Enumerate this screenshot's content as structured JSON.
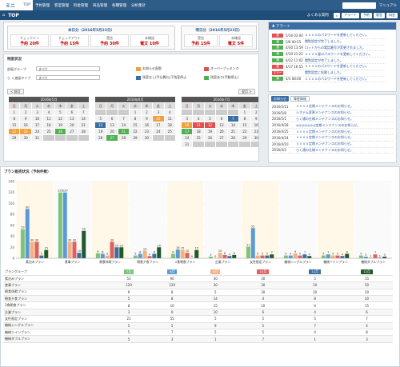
{
  "nav": {
    "logo": "ミニ",
    "items": [
      "TOP",
      "予約管理",
      "客室管理",
      "料金管理",
      "商品管理",
      "各種管理",
      "分析集計"
    ],
    "manual": "マニュアル"
  },
  "subbar": {
    "title": "TOP",
    "faq": "よくある質問",
    "buttons": [
      "アラート",
      "予約",
      "客室",
      "料金"
    ]
  },
  "today": {
    "title": "本日分（2016年5月22日）",
    "cells": [
      {
        "label": "チェックイン",
        "value": "予約 20件"
      },
      {
        "label": "チェックアウト",
        "value": "予約 15件"
      },
      {
        "label": "受信",
        "value": "予約 30件"
      },
      {
        "label": "未確認",
        "value": "電文 10件"
      }
    ]
  },
  "tomorrow": {
    "title": "明日分（2016年5月23日）",
    "cells": [
      {
        "label": "受信",
        "value": "予約 15件"
      },
      {
        "label": "未確認",
        "value": "電文 5件"
      }
    ]
  },
  "vacancy": {
    "title": "残室状況",
    "group_label": "部屋グループ",
    "group_value": "すべて",
    "type_label": "ら く遍留タイプ",
    "type_value": "すべて",
    "prev": "< 前月",
    "next": "翌月 >",
    "legend": [
      {
        "label": "お知らせ直野",
        "color": "#f0a040"
      },
      {
        "label": "オーバーブッキング",
        "color": "#e05050"
      },
      {
        "label": "残室なし(手仕舞)以下残室停止",
        "color": "#3a6ea5"
      },
      {
        "label": "残室あり(手動停止)",
        "color": "#50b050"
      }
    ]
  },
  "calendars": [
    {
      "title": "2016年5月",
      "days": [
        "1",
        "2",
        "3",
        "4",
        "5",
        "6",
        "7",
        "8",
        "9",
        "10",
        "11",
        "12",
        "13",
        "14",
        "15",
        "16",
        "17",
        "18",
        "19",
        "20",
        "21",
        "22",
        "23",
        "24",
        "25",
        "26",
        "27",
        "28",
        "29",
        "30",
        "31"
      ],
      "offset": 0
    },
    {
      "title": "2016年6月",
      "days": [
        "1",
        "2",
        "3",
        "4",
        "5",
        "6",
        "7",
        "8",
        "9",
        "10",
        "11",
        "12",
        "13",
        "14",
        "15",
        "16",
        "17",
        "18",
        "19",
        "20",
        "21",
        "22",
        "23",
        "24",
        "25",
        "26",
        "27",
        "28",
        "29",
        "30"
      ],
      "offset": 3
    },
    {
      "title": "2016年7月",
      "days": [
        "1",
        "2",
        "3",
        "4",
        "5",
        "6",
        "7",
        "8",
        "9",
        "10",
        "11",
        "12",
        "13",
        "14",
        "15",
        "16",
        "17",
        "18",
        "19",
        "20",
        "21",
        "22",
        "23",
        "24",
        "25",
        "26",
        "27",
        "28",
        "29",
        "30",
        "31"
      ],
      "offset": 5
    }
  ],
  "dow": [
    "日",
    "月",
    "火",
    "水",
    "木",
    "金",
    "土"
  ],
  "alerts": {
    "title": "アラート",
    "rows": [
      {
        "badge": "重",
        "color": "#e05050",
        "date": "5/16 03:00",
        "text": "ｘｘｘｘのパスワードを更新してください。"
      },
      {
        "badge": "通",
        "color": "#50b050",
        "date": "5/8 00:55",
        "text": "閲覧設定が完了しました。"
      },
      {
        "badge": "通",
        "color": "#50b050",
        "date": "4/30 13:59",
        "text": "ロットからの電話番号が変更されました。"
      },
      {
        "badge": "通",
        "color": "#50b050",
        "date": "4/30 21:22",
        "text": "ｘｘｘｘ屋のパスワードを更新してください。"
      },
      {
        "badge": "通",
        "color": "#50b050",
        "date": "4/22 11:02",
        "text": "閲覧設定が完了しました。"
      },
      {
        "badge": "重",
        "color": "#e05050",
        "date": "4/17 16:55",
        "text": "ｘｘｘｘのパスワードを更新してください。"
      },
      {
        "badge": "エラー",
        "color": "#e05050",
        "date": "",
        "text": "閲覧設定に失敗しました。"
      },
      {
        "badge": "通",
        "color": "#50b050",
        "date": "4/3 08:00",
        "text": "ｘｘｘｘのパスワードを更新してください。"
      }
    ]
  },
  "notices": {
    "title": "お知らせ",
    "tab2": "障害情報",
    "rows": [
      {
        "date": "2016/5/11",
        "text": "ｘｘｘｘ定期メンテナンスのお知らせ。"
      },
      {
        "date": "2016/5/8",
        "text": "システム変更メンテナンスのお知らせ。"
      },
      {
        "date": "2016/5/1",
        "text": "らく通の仕様メンテナンスのお知らせ。"
      },
      {
        "date": "2016/4/28",
        "text": "◎◎◎◎◎◎◎定期メンテナンスのお知らせ。"
      },
      {
        "date": "2016/4/25",
        "text": "ｘｘｘｘ定期メンテナンスのお知らせ。"
      },
      {
        "date": "2016/4/24",
        "text": "ｘｘｘｘ定期メンテナンスのお知らせ。"
      },
      {
        "date": "2016/4/10",
        "text": "ｘｘｘｘ定期メンテナンスのお知らせ。"
      },
      {
        "date": "2016/4/3",
        "text": "らく通の仕様メンテナンスのお知らせ。"
      }
    ]
  },
  "plan": {
    "title": "プラン販売状況（予約件数）",
    "header": "プラングループ"
  },
  "chart_data": {
    "type": "bar",
    "title": "",
    "ylim": [
      0,
      140
    ],
    "yticks": [
      "0",
      "20",
      "40",
      "60",
      "80",
      "100",
      "120",
      "140"
    ],
    "categories": [
      "素泊みプラン",
      "食事プラン",
      "朝食休暇プラン",
      "朝食夕食プラン",
      "2食朝食プラン",
      "企業プラン",
      "女性限定プラン",
      "機械シングルプラン",
      "機械ツインプラン",
      "機械ダブルプラン"
    ],
    "series": [
      {
        "name": "7月",
        "color": "#7cc47c",
        "values": [
          53,
          120,
          9,
          5,
          8,
          3,
          21,
          5,
          5,
          5
        ]
      },
      {
        "name": "8月",
        "color": "#5b9bd5",
        "values": [
          90,
          120,
          8,
          8,
          16,
          0,
          55,
          5,
          7,
          3
        ]
      },
      {
        "name": "9月",
        "color": "#f4b183",
        "values": [
          30,
          30,
          5,
          14,
          15,
          10,
          5,
          9,
          5,
          1
        ]
      },
      {
        "name": "10月",
        "color": "#e06060",
        "values": [
          30,
          30,
          30,
          4,
          10,
          6,
          5,
          5,
          5,
          7
        ]
      },
      {
        "name": "11月",
        "color": "#3a6ea5",
        "values": [
          5,
          10,
          20,
          8,
          0,
          4,
          5,
          7,
          4,
          1
        ]
      },
      {
        "name": "12月",
        "color": "#1f5a2a",
        "values": [
          15,
          50,
          20,
          20,
          15,
          6,
          7,
          4,
          8,
          3
        ]
      }
    ]
  }
}
